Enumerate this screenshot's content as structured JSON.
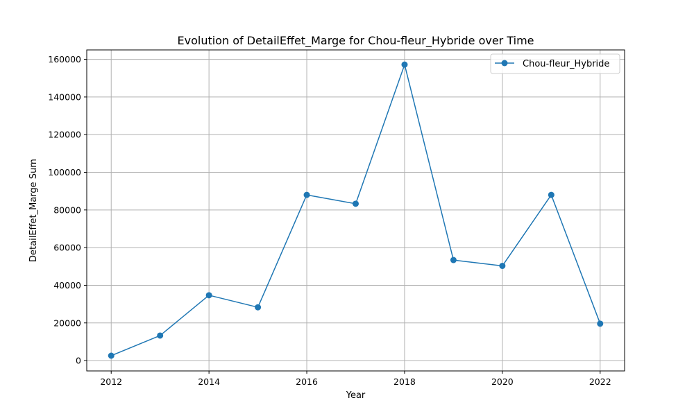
{
  "chart_data": {
    "type": "line",
    "title": "Evolution of DetailEffet_Marge for Chou-fleur_Hybride over Time",
    "xlabel": "Year",
    "ylabel": "DetailEffet_Marge Sum",
    "xlim": [
      2011.5,
      2022.5
    ],
    "ylim": [
      -5500,
      165000
    ],
    "x_ticks": [
      2012,
      2014,
      2016,
      2018,
      2020,
      2022
    ],
    "x_tick_labels": [
      "2012",
      "2014",
      "2016",
      "2018",
      "2020",
      "2022"
    ],
    "y_ticks": [
      0,
      20000,
      40000,
      60000,
      80000,
      100000,
      120000,
      140000,
      160000
    ],
    "y_tick_labels": [
      "0",
      "20000",
      "40000",
      "60000",
      "80000",
      "100000",
      "120000",
      "140000",
      "160000"
    ],
    "grid": true,
    "legend_position": "top-right",
    "series": [
      {
        "name": "Chou-fleur_Hybride",
        "color": "#1f77b4",
        "marker": "circle",
        "x": [
          2012,
          2013,
          2014,
          2015,
          2016,
          2017,
          2018,
          2019,
          2020,
          2021,
          2022
        ],
        "y": [
          2600,
          13300,
          34700,
          28300,
          88000,
          83300,
          157200,
          53400,
          50300,
          88000,
          19600
        ]
      }
    ]
  }
}
